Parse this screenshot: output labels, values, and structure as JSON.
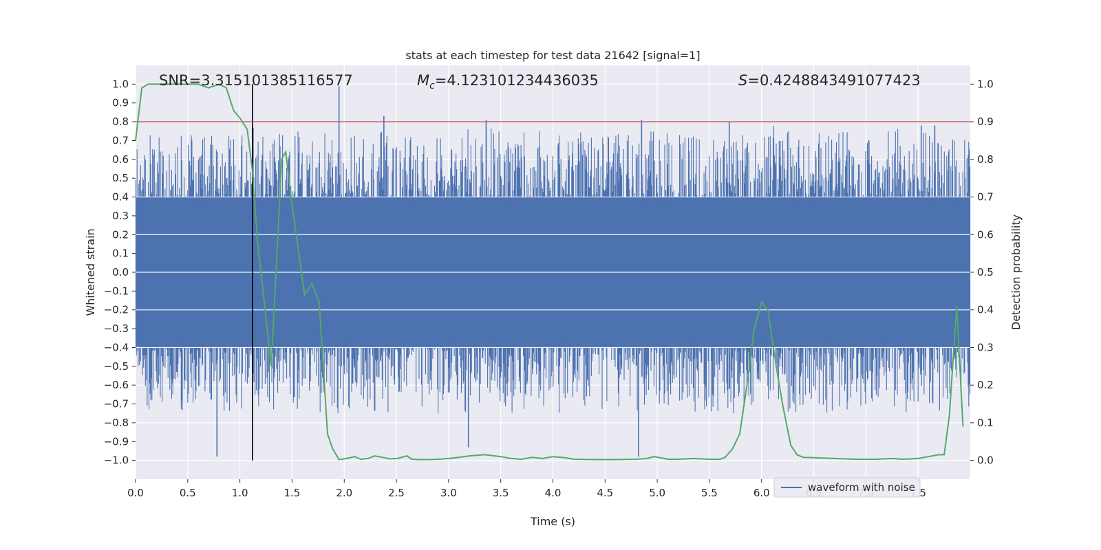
{
  "chart_data": {
    "type": "line",
    "title": "stats at each timestep for test data 21642 [signal=1]",
    "xlabel": "Time (s)",
    "ylabel": "Whitened strain",
    "y2label": "Detection probability",
    "xlim": [
      0.0,
      8.0
    ],
    "ylim": [
      -1.1,
      1.1
    ],
    "y2lim": [
      -0.05,
      1.05
    ],
    "xticks": [
      0.0,
      0.5,
      1.0,
      1.5,
      2.0,
      2.5,
      3.0,
      3.5,
      4.0,
      4.5,
      5.0,
      5.5,
      6.0,
      6.5,
      7.0,
      7.5
    ],
    "xtick_labels": [
      "0.0",
      "0.5",
      "1.0",
      "1.5",
      "2.0",
      "2.5",
      "3.0",
      "3.5",
      "4.0",
      "4.5",
      "5.0",
      "5.5",
      "6.0",
      "6.5",
      "7.0",
      "7.5"
    ],
    "yticks": [
      -1.0,
      -0.9,
      -0.8,
      -0.7,
      -0.6,
      -0.5,
      -0.4,
      -0.3,
      -0.2,
      -0.1,
      0.0,
      0.1,
      0.2,
      0.3,
      0.4,
      0.5,
      0.6,
      0.7,
      0.8,
      0.9,
      1.0
    ],
    "ytick_labels": [
      "−1.0",
      "−0.9",
      "−0.8",
      "−0.7",
      "−0.6",
      "−0.5",
      "−0.4",
      "−0.3",
      "−0.2",
      "−0.1",
      "0.0",
      "0.1",
      "0.2",
      "0.3",
      "0.4",
      "0.5",
      "0.6",
      "0.7",
      "0.8",
      "0.9",
      "1.0"
    ],
    "y2ticks": [
      0.0,
      0.1,
      0.2,
      0.3,
      0.4,
      0.5,
      0.6,
      0.7,
      0.8,
      0.9,
      1.0
    ],
    "y2tick_labels": [
      "0.0",
      "0.1",
      "0.2",
      "0.3",
      "0.4",
      "0.5",
      "0.6",
      "0.7",
      "0.8",
      "0.9",
      "1.0"
    ],
    "grid": true,
    "legend_placement": "lower-right",
    "colors": {
      "background": "#eaeaf2",
      "grid": "#ffffff",
      "waveform": "#4c72b0",
      "probability": "#55a868",
      "threshold": "#c44e52",
      "marker": "#000000"
    },
    "annotations": {
      "snr": "SNR=3.315101385116577",
      "mc_symbol": "M",
      "mc_sub": "c",
      "mc_value": "=4.123101234436035",
      "s_symbol": "S",
      "s_value": "=0.4248843491077423"
    },
    "threshold_probability": 0.9,
    "marker_time": 1.12,
    "series": [
      {
        "name": "waveform with noise",
        "kind": "noise",
        "core_amplitude": 0.4,
        "spike_amplitude_range": [
          0.4,
          1.0
        ],
        "notable_spikes": [
          {
            "x": 1.95,
            "y": 0.99
          },
          {
            "x": 4.82,
            "y": -0.98
          },
          {
            "x": 0.78,
            "y": -0.98
          },
          {
            "x": 3.19,
            "y": -0.93
          },
          {
            "x": 4.85,
            "y": 0.81
          },
          {
            "x": 3.36,
            "y": 0.81
          },
          {
            "x": 5.69,
            "y": 0.8
          },
          {
            "x": 7.66,
            "y": 0.78
          },
          {
            "x": 2.38,
            "y": 0.83
          },
          {
            "x": 7.53,
            "y": 0.78
          }
        ]
      },
      {
        "name": "",
        "axis": "right",
        "x": [
          0.0,
          0.06,
          0.12,
          0.2,
          0.3,
          0.45,
          0.6,
          0.7,
          0.8,
          0.87,
          0.94,
          1.0,
          1.07,
          1.12,
          1.17,
          1.23,
          1.3,
          1.35,
          1.4,
          1.44,
          1.49,
          1.55,
          1.62,
          1.69,
          1.76,
          1.84,
          1.89,
          1.95,
          2.02,
          2.1,
          2.16,
          2.23,
          2.29,
          2.37,
          2.44,
          2.51,
          2.6,
          2.65,
          2.72,
          2.8,
          2.9,
          3.0,
          3.1,
          3.2,
          3.35,
          3.5,
          3.6,
          3.7,
          3.8,
          3.9,
          4.0,
          4.12,
          4.2,
          4.4,
          4.6,
          4.8,
          4.9,
          4.97,
          5.05,
          5.1,
          5.2,
          5.35,
          5.5,
          5.6,
          5.65,
          5.72,
          5.79,
          5.86,
          5.93,
          6.0,
          6.06,
          6.14,
          6.2,
          6.28,
          6.34,
          6.4,
          6.5,
          6.7,
          6.9,
          7.1,
          7.25,
          7.35,
          7.5,
          7.6,
          7.7,
          7.75,
          7.8,
          7.87,
          7.93
        ],
        "values": [
          0.85,
          0.99,
          1.0,
          1.0,
          1.0,
          1.0,
          1.0,
          0.99,
          1.0,
          0.99,
          0.93,
          0.91,
          0.88,
          0.77,
          0.58,
          0.43,
          0.25,
          0.52,
          0.8,
          0.82,
          0.7,
          0.58,
          0.44,
          0.47,
          0.42,
          0.07,
          0.03,
          0.002,
          0.005,
          0.01,
          0.003,
          0.005,
          0.012,
          0.008,
          0.004,
          0.005,
          0.012,
          0.003,
          0.002,
          0.002,
          0.003,
          0.005,
          0.008,
          0.012,
          0.015,
          0.01,
          0.005,
          0.003,
          0.008,
          0.005,
          0.01,
          0.007,
          0.003,
          0.002,
          0.002,
          0.003,
          0.005,
          0.01,
          0.006,
          0.003,
          0.003,
          0.005,
          0.003,
          0.003,
          0.008,
          0.03,
          0.07,
          0.2,
          0.35,
          0.42,
          0.4,
          0.25,
          0.15,
          0.04,
          0.015,
          0.008,
          0.007,
          0.005,
          0.003,
          0.003,
          0.005,
          0.003,
          0.005,
          0.01,
          0.015,
          0.015,
          0.12,
          0.41,
          0.09
        ]
      }
    ]
  }
}
